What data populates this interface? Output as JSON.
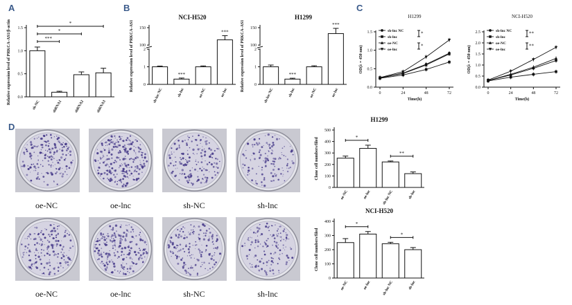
{
  "panels": {
    "A": "A",
    "B": "B",
    "C": "C",
    "D": "D"
  },
  "colors": {
    "line": "#111111",
    "bar": "#ffffff",
    "dish_bg": "#c9c9d1",
    "colony": "#4b3f8c",
    "panel_letter": "#3a5a8a"
  },
  "chart_data": [
    {
      "id": "A",
      "type": "bar",
      "title": "",
      "ylabel": "Relative expression level of PRKCA-AS1/β-actin",
      "categories": [
        "sh-NC",
        "shRNA1",
        "shRNA2",
        "shRNA3"
      ],
      "values": [
        1.0,
        0.1,
        0.48,
        0.52
      ],
      "errors": [
        0.08,
        0.02,
        0.06,
        0.1
      ],
      "ylim": [
        0,
        1.5
      ],
      "yticks": [
        "0.0",
        "0.5",
        "1.0",
        "1.5"
      ],
      "comparisons": [
        {
          "from": 0,
          "to": 1,
          "label": "***"
        },
        {
          "from": 0,
          "to": 2,
          "label": "*"
        },
        {
          "from": 0,
          "to": 3,
          "label": "*"
        }
      ]
    },
    {
      "id": "B1",
      "type": "bar",
      "title": "NCI-H520",
      "ylabel": "Relative expression level of PRKCA-AS1",
      "categories": [
        "sh-lnc NC",
        "sh-lnc",
        "oe-NC",
        "oe-lnc"
      ],
      "values": [
        1.0,
        0.3,
        1.0,
        115
      ],
      "errors": [
        0.04,
        0.06,
        0.05,
        12
      ],
      "ylim": [
        0,
        150
      ],
      "yticks": [
        "0",
        "1",
        "2",
        "100",
        "150"
      ],
      "markers": [
        "",
        "***",
        "",
        "***"
      ]
    },
    {
      "id": "B2",
      "type": "bar",
      "title": "H1299",
      "ylabel": "Relative expression level of PRKCA-AS1",
      "categories": [
        "sh-lnc NC",
        "sh-lnc",
        "oe-NC",
        "oe-lnc"
      ],
      "values": [
        1.0,
        0.3,
        1.0,
        133
      ],
      "errors": [
        0.1,
        0.05,
        0.06,
        15
      ],
      "ylim": [
        0,
        150
      ],
      "yticks": [
        "0",
        "1",
        "2",
        "100",
        "150"
      ],
      "markers": [
        "",
        "***",
        "",
        "***"
      ]
    },
    {
      "id": "C1",
      "type": "line",
      "title": "H1299",
      "xlabel": "Time(h)",
      "ylabel": "OD(λ = 450 nm)",
      "x": [
        0,
        24,
        48,
        72
      ],
      "xticks": [
        "0",
        "24",
        "48",
        "72"
      ],
      "ylim": [
        0,
        1.5
      ],
      "yticks": [
        "0.0",
        "0.5",
        "1.0",
        "1.5"
      ],
      "series": [
        {
          "name": "sh-lnc NC",
          "marker": "circle",
          "values": [
            0.25,
            0.38,
            0.62,
            0.92
          ]
        },
        {
          "name": "sh-lnc",
          "marker": "square",
          "values": [
            0.24,
            0.33,
            0.48,
            0.68
          ]
        },
        {
          "name": "oe-NC",
          "marker": "triangle",
          "values": [
            0.25,
            0.37,
            0.6,
            0.9
          ]
        },
        {
          "name": "oe-lnc",
          "marker": "diamond",
          "values": [
            0.26,
            0.42,
            0.82,
            1.28
          ]
        }
      ],
      "legend_marks": [
        "*",
        "*"
      ]
    },
    {
      "id": "C2",
      "type": "line",
      "title": "NCI-H520",
      "xlabel": "Time(h)",
      "ylabel": "OD(λ = 450 nm)",
      "x": [
        0,
        24,
        48,
        72
      ],
      "xticks": [
        "0",
        "24",
        "48",
        "72"
      ],
      "ylim": [
        0,
        2.5
      ],
      "yticks": [
        "0.0",
        "0.5",
        "1.0",
        "1.5",
        "2.0",
        "2.5"
      ],
      "series": [
        {
          "name": "sh-lnc NC",
          "marker": "circle",
          "values": [
            0.3,
            0.55,
            0.85,
            1.2
          ]
        },
        {
          "name": "sh-lnc",
          "marker": "square",
          "values": [
            0.28,
            0.45,
            0.58,
            0.7
          ]
        },
        {
          "name": "oe-NC",
          "marker": "triangle",
          "values": [
            0.3,
            0.58,
            0.9,
            1.3
          ]
        },
        {
          "name": "oe-lnc",
          "marker": "diamond",
          "values": [
            0.32,
            0.72,
            1.25,
            1.8
          ]
        }
      ],
      "legend_marks": [
        "**",
        "**"
      ]
    },
    {
      "id": "D1",
      "type": "bar",
      "title": "H1299",
      "ylabel": "Clone cell numbers/filed",
      "categories": [
        "oe-NC",
        "oe-lnc",
        "sh-lnc NC",
        "sh-lnc"
      ],
      "values": [
        255,
        340,
        222,
        120
      ],
      "errors": [
        18,
        28,
        8,
        15
      ],
      "ylim": [
        0,
        500
      ],
      "yticks": [
        "0",
        "100",
        "200",
        "300",
        "400",
        "500"
      ],
      "comparisons": [
        {
          "from": 0,
          "to": 1,
          "label": "*"
        },
        {
          "from": 2,
          "to": 3,
          "label": "**"
        }
      ]
    },
    {
      "id": "D2",
      "type": "bar",
      "title": "NCI-H520",
      "ylabel": "Clone cell numbers/filed",
      "categories": [
        "oe-NC",
        "oe-lnc",
        "sh-lnc NC",
        "sh-lnc"
      ],
      "values": [
        250,
        310,
        242,
        200
      ],
      "errors": [
        28,
        18,
        10,
        15
      ],
      "ylim": [
        0,
        400
      ],
      "yticks": [
        "0",
        "100",
        "200",
        "300",
        "400"
      ],
      "comparisons": [
        {
          "from": 0,
          "to": 1,
          "label": "*"
        },
        {
          "from": 2,
          "to": 3,
          "label": "*"
        }
      ]
    }
  ],
  "dishes": {
    "labels": [
      "oe-NC",
      "oe-lnc",
      "sh-NC",
      "sh-lnc"
    ],
    "rows": [
      [
        {
          "density": 0.55
        },
        {
          "density": 0.85
        },
        {
          "density": 0.5
        },
        {
          "density": 0.35
        }
      ],
      [
        {
          "density": 0.55
        },
        {
          "density": 0.75
        },
        {
          "density": 0.5
        },
        {
          "density": 0.4
        }
      ]
    ]
  }
}
